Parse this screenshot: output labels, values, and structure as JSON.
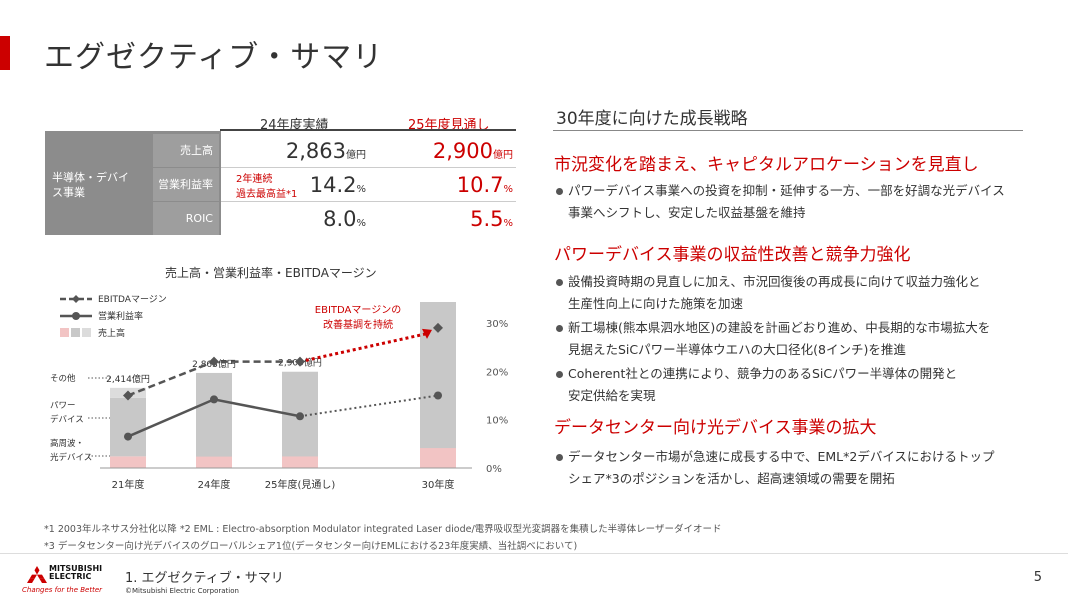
{
  "title": "エグゼクティブ・サマリ",
  "kpi": {
    "col_headers": [
      "24年度実績",
      "25年度見通し"
    ],
    "segment": "半導体・デバイス事業",
    "rows": [
      {
        "label": "売上高",
        "v24": "2,863",
        "v24_unit": "億円",
        "v25": "2,900",
        "v25_unit": "億円"
      },
      {
        "label": "営業利益率",
        "v24": "14.2",
        "v24_unit": "%",
        "v25": "10.7",
        "v25_unit": "%"
      },
      {
        "label": "ROIC",
        "v24": "8.0",
        "v24_unit": "%",
        "v25": "5.5",
        "v25_unit": "%"
      }
    ],
    "note": [
      "2年連続",
      "過去最高益*1"
    ]
  },
  "chart_data": {
    "type": "bar",
    "title": "売上高・営業利益率・EBITDAマージン",
    "categories": [
      "21年度",
      "24年度",
      "25年度(見通し)",
      "30年度"
    ],
    "legend": [
      "EBITDAマージン",
      "営業利益率",
      "売上高"
    ],
    "bar_labels": [
      "2,414億円",
      "2,863億円",
      "2,900億円",
      ""
    ],
    "sales_values": [
      2414,
      2863,
      2900,
      5000
    ],
    "segments": [
      "その他",
      "パワーデバイス",
      "高周波・光デバイス"
    ],
    "segment_stack_21": [
      {
        "name": "高周波・光デバイス",
        "value": 350
      },
      {
        "name": "パワーデバイス",
        "value": 1760
      },
      {
        "name": "その他",
        "value": 304
      }
    ],
    "ebitda_margin": [
      15,
      22,
      22,
      29
    ],
    "operating_margin": [
      6.5,
      14.2,
      10.7,
      15
    ],
    "y2_ticks": [
      "0%",
      "10%",
      "20%",
      "30%"
    ],
    "y2lim": [
      0,
      30
    ],
    "annotation": [
      "EBITDAマージンの",
      "改善基調を持続"
    ],
    "colors": {
      "bar": "#c8c8c8",
      "bar_pink": "#f2c4c4",
      "bar_other": "#dcdcdc",
      "arrow": "#cc0000",
      "line": "#555555"
    }
  },
  "right": {
    "heading": "30年度に向けた成長戦略",
    "sections": [
      {
        "title": "市況変化を踏まえ、キャピタルアロケーションを見直し",
        "bullets": [
          [
            "パワーデバイス事業への投資を抑制・延伸する一方、一部を好調な光デバイス",
            "事業へシフトし、安定した収益基盤を維持"
          ]
        ]
      },
      {
        "title": "パワーデバイス事業の収益性改善と競争力強化",
        "bullets": [
          [
            "設備投資時期の見直しに加え、市況回復後の再成長に向けて収益力強化と",
            "生産性向上に向けた施策を加速"
          ],
          [
            "新工場棟(熊本県泗水地区)の建設を計画どおり進め、中長期的な市場拡大を",
            "見据えたSiCパワー半導体ウエハの大口径化(8インチ)を推進"
          ],
          [
            "Coherent社との連携により、競争力のあるSiCパワー半導体の開発と",
            "安定供給を実現"
          ]
        ]
      },
      {
        "title": "データセンター向け光デバイス事業の拡大",
        "bullets": [
          [
            "データセンター市場が急速に成長する中で、EML*2デバイスにおけるトップ",
            "シェア*3のポジションを活かし、超高速領域の需要を開拓"
          ]
        ]
      }
    ]
  },
  "footnotes": [
    "*1  2003年ルネサス分社化以降      *2 EML : Electro-absorption Modulator integrated Laser diode/電界吸収型光変調器を集積した半導体レーザーダイオード",
    "*3  データセンター向け光デバイスのグローバルシェア1位(データセンター向けEMLにおける23年度実績、当社調べにおいて)"
  ],
  "footer": {
    "logo": [
      "MITSUBISHI",
      "ELECTRIC"
    ],
    "tagline": "Changes for the Better",
    "section": "1. エグゼクティブ・サマリ",
    "copyright": "©Mitsubishi Electric Corporation",
    "page": "5"
  }
}
